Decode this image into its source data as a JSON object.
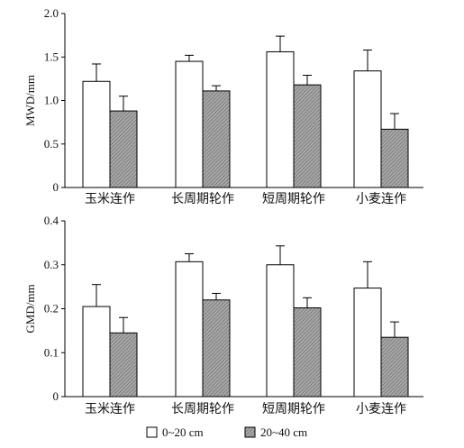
{
  "colors": {
    "series_0_20": "#ffffff",
    "series_20_40": "#a8a8a8",
    "hatch": "#6f6f6f",
    "axis": "#000000"
  },
  "legend": {
    "items": [
      {
        "label": "0~20 cm",
        "swatch": "empty-box"
      },
      {
        "label": "20~40 cm",
        "swatch": "hatched-box"
      }
    ],
    "placement": "bottom-center"
  },
  "chart_data": [
    {
      "type": "bar",
      "ylabel": "MWD/mm",
      "ylim": [
        0,
        2.0
      ],
      "yticks": [
        "0",
        "0.5",
        "1.0",
        "1.5",
        "2.0"
      ],
      "yticks_values": [
        0,
        0.5,
        1.0,
        1.5,
        2.0
      ],
      "categories": [
        "玉米连作",
        "长周期轮作",
        "短周期轮作",
        "小麦连作"
      ],
      "series": [
        {
          "name": "0~20 cm",
          "values": [
            1.22,
            1.45,
            1.56,
            1.34
          ],
          "errors": [
            0.2,
            0.07,
            0.18,
            0.24
          ]
        },
        {
          "name": "20~40 cm",
          "values": [
            0.88,
            1.11,
            1.18,
            0.67
          ],
          "errors": [
            0.17,
            0.06,
            0.11,
            0.18
          ]
        }
      ],
      "grid": false
    },
    {
      "type": "bar",
      "ylabel": "GMD/mm",
      "ylim": [
        0,
        0.4
      ],
      "yticks": [
        "0",
        "0.1",
        "0.2",
        "0.3",
        "0.4"
      ],
      "yticks_values": [
        0,
        0.1,
        0.2,
        0.3,
        0.4
      ],
      "categories": [
        "玉米连作",
        "长周期轮作",
        "短周期轮作",
        "小麦连作"
      ],
      "series": [
        {
          "name": "0~20 cm",
          "values": [
            0.205,
            0.307,
            0.3,
            0.247
          ],
          "errors": [
            0.05,
            0.018,
            0.043,
            0.06
          ]
        },
        {
          "name": "20~40 cm",
          "values": [
            0.145,
            0.22,
            0.202,
            0.135
          ],
          "errors": [
            0.035,
            0.015,
            0.023,
            0.035
          ]
        }
      ],
      "grid": false
    }
  ]
}
